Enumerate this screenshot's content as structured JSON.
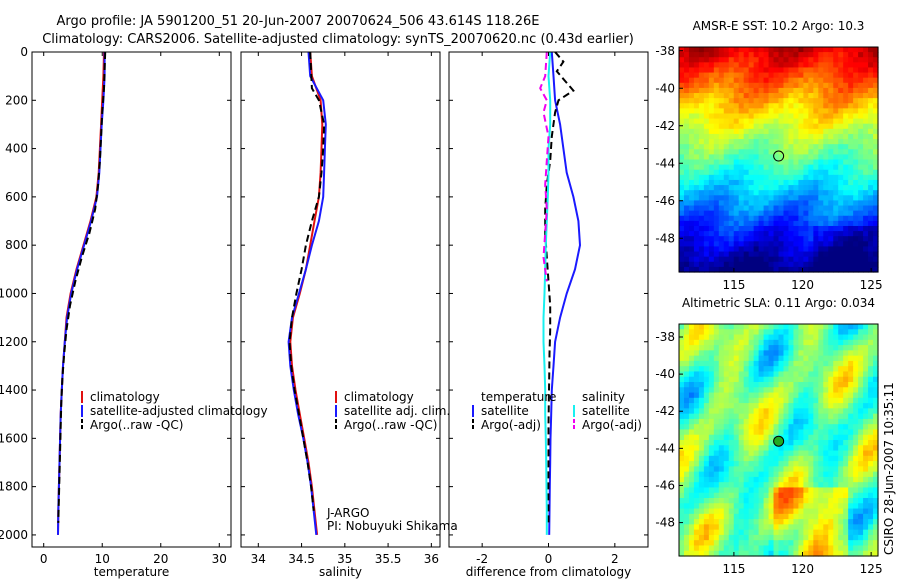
{
  "header": {
    "title_line1": "Argo profile: JA 5901200_51 20-Jun-2007 20070624_506 43.614S 118.26E",
    "title_line2": "Climatology: CARS2006. Satellite-adjusted climatology: synTS_20070620.nc (0.43d earlier)"
  },
  "side_label": "CSIRO 28-Jun-2007 10:35:11",
  "colors": {
    "climatology": "#e01010",
    "satellite": "#1a1aff",
    "argo": "#000000",
    "sat_salinity": "#18f0f0",
    "argo_salinity": "#f000f0"
  },
  "chart_data": [
    {
      "type": "line",
      "name": "temperature-panel",
      "xlabel": "temperature",
      "xlim": [
        -2,
        32
      ],
      "ylim": [
        0,
        2050
      ],
      "y_reversed": true,
      "xticks": [
        0,
        10,
        20,
        30
      ],
      "yticks": [
        0,
        200,
        400,
        600,
        800,
        1000,
        1200,
        1400,
        1600,
        1800,
        2000
      ],
      "legend": [
        "climatology",
        "satellite-adjusted climatology",
        "Argo(..raw -QC)"
      ],
      "series": [
        {
          "name": "climatology",
          "style": "solid",
          "points": [
            [
              10.3,
              0
            ],
            [
              10.2,
              100
            ],
            [
              10.0,
              200
            ],
            [
              9.8,
              300
            ],
            [
              9.6,
              400
            ],
            [
              9.4,
              500
            ],
            [
              9.0,
              600
            ],
            [
              8.0,
              700
            ],
            [
              6.8,
              800
            ],
            [
              5.6,
              900
            ],
            [
              4.6,
              1000
            ],
            [
              3.9,
              1100
            ],
            [
              3.6,
              1200
            ],
            [
              3.3,
              1300
            ],
            [
              3.1,
              1400
            ],
            [
              2.9,
              1500
            ],
            [
              2.8,
              1600
            ],
            [
              2.7,
              1700
            ],
            [
              2.6,
              1800
            ],
            [
              2.5,
              1900
            ],
            [
              2.45,
              2000
            ]
          ]
        },
        {
          "name": "satellite-adjusted climatology",
          "style": "solid",
          "points": [
            [
              10.4,
              0
            ],
            [
              10.4,
              100
            ],
            [
              10.2,
              200
            ],
            [
              9.9,
              300
            ],
            [
              9.7,
              400
            ],
            [
              9.5,
              500
            ],
            [
              9.1,
              600
            ],
            [
              8.1,
              700
            ],
            [
              6.9,
              800
            ],
            [
              5.7,
              900
            ],
            [
              4.7,
              1000
            ],
            [
              4.0,
              1100
            ],
            [
              3.6,
              1200
            ],
            [
              3.3,
              1300
            ],
            [
              3.1,
              1400
            ],
            [
              2.9,
              1500
            ],
            [
              2.8,
              1600
            ],
            [
              2.7,
              1700
            ],
            [
              2.6,
              1800
            ],
            [
              2.5,
              1900
            ],
            [
              2.45,
              2000
            ]
          ]
        },
        {
          "name": "Argo(..raw -QC)",
          "style": "dashed",
          "points": [
            [
              10.5,
              0
            ],
            [
              10.3,
              150
            ],
            [
              10.0,
              250
            ],
            [
              9.8,
              350
            ],
            [
              9.6,
              450
            ],
            [
              9.3,
              550
            ],
            [
              8.8,
              650
            ],
            [
              7.8,
              750
            ],
            [
              6.5,
              850
            ],
            [
              5.4,
              950
            ],
            [
              4.5,
              1050
            ],
            [
              3.9,
              1150
            ],
            [
              3.5,
              1250
            ],
            [
              3.2,
              1350
            ],
            [
              3.0,
              1450
            ],
            [
              2.9,
              1550
            ],
            [
              2.8,
              1650
            ],
            [
              2.7,
              1750
            ],
            [
              2.6,
              1850
            ],
            [
              2.5,
              1950
            ]
          ]
        }
      ]
    },
    {
      "type": "line",
      "name": "salinity-panel",
      "xlabel": "salinity",
      "xlim": [
        33.8,
        36.1
      ],
      "ylim": [
        0,
        2050
      ],
      "y_reversed": true,
      "xticks": [
        34,
        34.5,
        35,
        35.5,
        36
      ],
      "legend": [
        "climatology",
        "satellite adj. clim.",
        "Argo(..raw -QC)"
      ],
      "annotations": [
        "J-ARGO",
        "PI: Nobuyuki Shikama"
      ],
      "series": [
        {
          "name": "climatology",
          "style": "solid",
          "points": [
            [
              34.6,
              0
            ],
            [
              34.62,
              100
            ],
            [
              34.72,
              200
            ],
            [
              34.74,
              300
            ],
            [
              34.73,
              400
            ],
            [
              34.72,
              500
            ],
            [
              34.7,
              600
            ],
            [
              34.65,
              700
            ],
            [
              34.6,
              800
            ],
            [
              34.55,
              900
            ],
            [
              34.48,
              1000
            ],
            [
              34.4,
              1100
            ],
            [
              34.37,
              1200
            ],
            [
              34.39,
              1300
            ],
            [
              34.43,
              1400
            ],
            [
              34.48,
              1500
            ],
            [
              34.53,
              1600
            ],
            [
              34.58,
              1700
            ],
            [
              34.62,
              1800
            ],
            [
              34.65,
              1900
            ],
            [
              34.68,
              2000
            ]
          ]
        },
        {
          "name": "satellite adj. clim.",
          "style": "solid",
          "points": [
            [
              34.58,
              0
            ],
            [
              34.6,
              100
            ],
            [
              34.75,
              200
            ],
            [
              34.78,
              300
            ],
            [
              34.77,
              400
            ],
            [
              34.76,
              500
            ],
            [
              34.75,
              600
            ],
            [
              34.7,
              700
            ],
            [
              34.62,
              800
            ],
            [
              34.55,
              900
            ],
            [
              34.47,
              1000
            ],
            [
              34.39,
              1100
            ],
            [
              34.35,
              1200
            ],
            [
              34.37,
              1300
            ],
            [
              34.41,
              1400
            ],
            [
              34.46,
              1500
            ],
            [
              34.52,
              1600
            ],
            [
              34.57,
              1700
            ],
            [
              34.61,
              1800
            ],
            [
              34.64,
              1900
            ],
            [
              34.67,
              2000
            ]
          ]
        },
        {
          "name": "Argo(..raw -QC)",
          "style": "dashed",
          "points": [
            [
              34.6,
              0
            ],
            [
              34.62,
              150
            ],
            [
              34.7,
              200
            ],
            [
              34.76,
              300
            ],
            [
              34.75,
              400
            ],
            [
              34.73,
              500
            ],
            [
              34.7,
              600
            ],
            [
              34.62,
              700
            ],
            [
              34.55,
              800
            ],
            [
              34.5,
              900
            ],
            [
              34.44,
              1000
            ],
            [
              34.39,
              1100
            ],
            [
              34.36,
              1200
            ],
            [
              34.38,
              1300
            ],
            [
              34.42,
              1400
            ],
            [
              34.47,
              1500
            ],
            [
              34.52,
              1600
            ],
            [
              34.57,
              1700
            ],
            [
              34.61,
              1800
            ],
            [
              34.64,
              1900
            ]
          ]
        }
      ]
    },
    {
      "type": "line",
      "name": "difference-panel",
      "xlabel": "difference from climatology",
      "xlim": [
        -3,
        3
      ],
      "ylim": [
        0,
        2050
      ],
      "y_reversed": true,
      "xticks": [
        -2,
        0,
        2
      ],
      "legend_headers": [
        "temperature",
        "salinity"
      ],
      "legend": [
        "satellite",
        "Argo(-adj)",
        "satellite",
        "Argo(-adj)"
      ],
      "series": [
        {
          "name": "temperature satellite",
          "style": "solid",
          "points": [
            [
              0.1,
              0
            ],
            [
              0.15,
              100
            ],
            [
              0.2,
              200
            ],
            [
              0.35,
              300
            ],
            [
              0.45,
              400
            ],
            [
              0.55,
              500
            ],
            [
              0.75,
              600
            ],
            [
              0.9,
              700
            ],
            [
              0.95,
              800
            ],
            [
              0.8,
              900
            ],
            [
              0.55,
              1000
            ],
            [
              0.35,
              1100
            ],
            [
              0.2,
              1200
            ],
            [
              0.15,
              1300
            ],
            [
              0.1,
              1400
            ],
            [
              0.08,
              1500
            ],
            [
              0.06,
              1600
            ],
            [
              0.05,
              1700
            ],
            [
              0.04,
              1800
            ],
            [
              0.03,
              1900
            ],
            [
              0.02,
              2000
            ]
          ]
        },
        {
          "name": "temperature Argo(-adj)",
          "style": "dashed",
          "points": [
            [
              0.2,
              0
            ],
            [
              0.45,
              40
            ],
            [
              0.25,
              80
            ],
            [
              0.5,
              120
            ],
            [
              0.75,
              160
            ],
            [
              0.3,
              200
            ],
            [
              0.2,
              250
            ],
            [
              0.1,
              350
            ],
            [
              0.05,
              450
            ],
            [
              -0.05,
              550
            ],
            [
              -0.1,
              650
            ],
            [
              -0.1,
              750
            ],
            [
              -0.05,
              850
            ],
            [
              0.0,
              950
            ],
            [
              0.05,
              1050
            ],
            [
              0.05,
              1150
            ],
            [
              0.03,
              1250
            ],
            [
              0.02,
              1350
            ],
            [
              0.01,
              1450
            ],
            [
              0.0,
              1550
            ],
            [
              0.0,
              1650
            ],
            [
              0.0,
              1750
            ],
            [
              0.0,
              1850
            ],
            [
              0.0,
              1950
            ]
          ]
        },
        {
          "name": "salinity satellite",
          "style": "solid",
          "points": [
            [
              0.05,
              0
            ],
            [
              0.0,
              100
            ],
            [
              0.05,
              200
            ],
            [
              0.05,
              300
            ],
            [
              0.0,
              400
            ],
            [
              0.0,
              500
            ],
            [
              -0.02,
              600
            ],
            [
              -0.05,
              700
            ],
            [
              -0.08,
              800
            ],
            [
              -0.1,
              900
            ],
            [
              -0.12,
              1000
            ],
            [
              -0.15,
              1100
            ],
            [
              -0.15,
              1200
            ],
            [
              -0.12,
              1300
            ],
            [
              -0.1,
              1400
            ],
            [
              -0.1,
              1500
            ],
            [
              -0.08,
              1600
            ],
            [
              -0.07,
              1700
            ],
            [
              -0.06,
              1800
            ],
            [
              -0.05,
              1900
            ],
            [
              -0.05,
              2000
            ]
          ]
        },
        {
          "name": "salinity Argo(-adj)",
          "style": "dashed",
          "points": [
            [
              -0.05,
              0
            ],
            [
              -0.1,
              100
            ],
            [
              -0.25,
              150
            ],
            [
              -0.05,
              200
            ],
            [
              -0.15,
              250
            ],
            [
              0.0,
              350
            ],
            [
              -0.05,
              450
            ],
            [
              -0.1,
              550
            ],
            [
              -0.05,
              650
            ],
            [
              -0.1,
              750
            ],
            [
              -0.15,
              850
            ],
            [
              -0.05,
              950
            ]
          ]
        }
      ]
    },
    {
      "type": "heatmap",
      "name": "sst-map",
      "title": "AMSR-E SST: 10.2 Argo: 10.3",
      "xlim": [
        111,
        125.5
      ],
      "ylim": [
        -49.8,
        -37.8
      ],
      "xticks": [
        115,
        120,
        125
      ],
      "yticks": [
        -38,
        -40,
        -42,
        -44,
        -46,
        -48
      ],
      "marker": [
        118.26,
        -43.614
      ]
    },
    {
      "type": "heatmap",
      "name": "sla-map",
      "title": "Altimetric SLA: 0.11 Argo: 0.034",
      "xlim": [
        111,
        125.5
      ],
      "ylim": [
        -49.8,
        -37.3
      ],
      "xticks": [
        115,
        120,
        125
      ],
      "yticks": [
        -38,
        -40,
        -42,
        -44,
        -46,
        -48
      ],
      "marker": [
        118.26,
        -43.614
      ]
    }
  ]
}
